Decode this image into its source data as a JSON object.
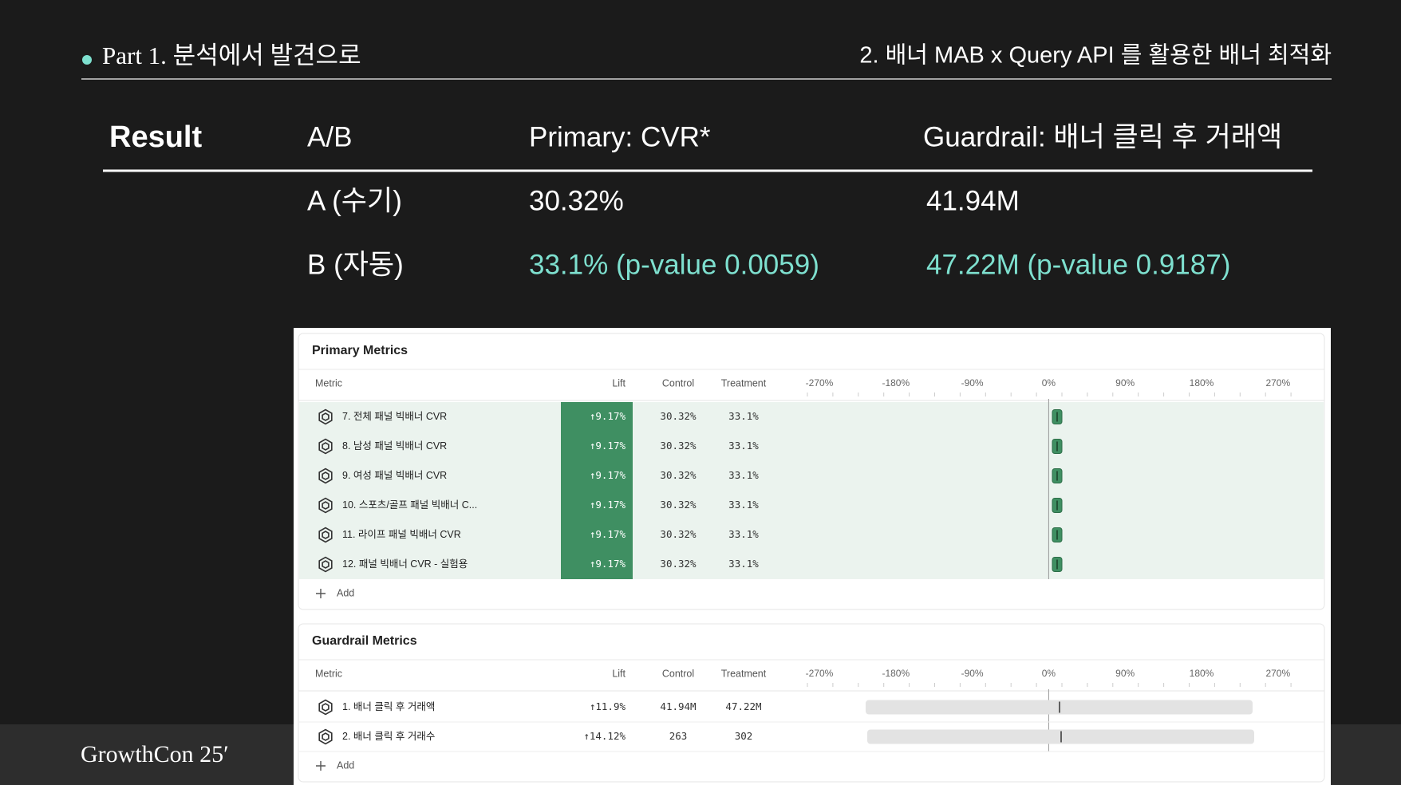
{
  "header": {
    "section": "Part 1. 분석에서 발견으로",
    "topic": "2. 배너 MAB x Query API 를 활용한 배너 최적화"
  },
  "result": {
    "title": "Result",
    "columns": [
      "A/B",
      "Primary: CVR*",
      "Guardrail: 배너 클릭 후 거래액"
    ],
    "rows": [
      [
        "A (수기)",
        "30.32%",
        "41.94M"
      ],
      [
        "B (자동)",
        "33.1% (p-value 0.0059)",
        "47.22M (p-value 0.9187)"
      ]
    ]
  },
  "panel": {
    "columns": [
      "Metric",
      "Lift",
      "Control",
      "Treatment"
    ],
    "axis_ticks": [
      "-270%",
      "-180%",
      "-90%",
      "0%",
      "90%",
      "180%",
      "270%"
    ],
    "sections": [
      {
        "title": "Primary Metrics",
        "add": "Add",
        "rows": [
          {
            "name": "7. 전체 패널 빅배너 CVR",
            "lift": "↑9.17%",
            "control": "30.32%",
            "treatment": "33.1%"
          },
          {
            "name": "8. 남성 패널 빅배너 CVR",
            "lift": "↑9.17%",
            "control": "30.32%",
            "treatment": "33.1%"
          },
          {
            "name": "9. 여성 패널 빅배너 CVR",
            "lift": "↑9.17%",
            "control": "30.32%",
            "treatment": "33.1%"
          },
          {
            "name": "10. 스포츠/골프 패널 빅배너 C...",
            "lift": "↑9.17%",
            "control": "30.32%",
            "treatment": "33.1%"
          },
          {
            "name": "11. 라이프 패널 빅배너 CVR",
            "lift": "↑9.17%",
            "control": "30.32%",
            "treatment": "33.1%"
          },
          {
            "name": "12. 패널 빅배너 CVR - 실험용",
            "lift": "↑9.17%",
            "control": "30.32%",
            "treatment": "33.1%"
          }
        ]
      },
      {
        "title": "Guardrail Metrics",
        "add": "Add",
        "rows": [
          {
            "name": "1. 배너 클릭 후 거래액",
            "lift": "↑11.9%",
            "control": "41.94M",
            "treatment": "47.22M"
          },
          {
            "name": "2. 배너 클릭 후 거래수",
            "lift": "↑14.12%",
            "control": "263",
            "treatment": "302"
          }
        ]
      }
    ]
  },
  "footer": {
    "brand": "GrowthCon 25′"
  }
}
